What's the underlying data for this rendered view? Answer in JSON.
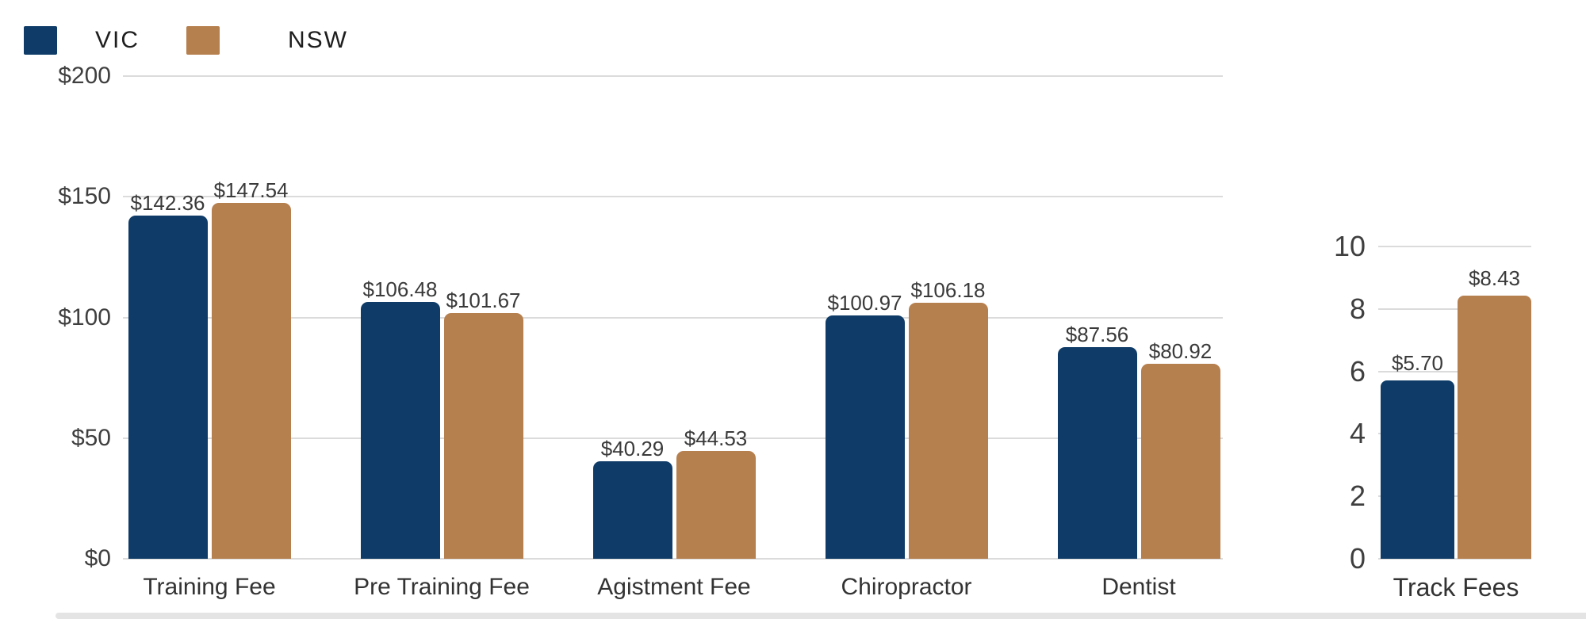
{
  "colors": {
    "vic": "#0E3B67",
    "nsw": "#B67F4E",
    "grid": "#DBDBDB",
    "tick_text": "#3F3F3F",
    "value_text": "#3A3A3A",
    "category_text": "#333333",
    "legend_text": "#1E1E1E",
    "page_edge": "#E4E4E4"
  },
  "legend": {
    "items": [
      {
        "label": "VIC",
        "color": "#0E3B67"
      },
      {
        "label": "NSW",
        "color": "#B67F4E"
      }
    ]
  },
  "chart_data": [
    {
      "type": "bar",
      "title": "",
      "xlabel": "",
      "ylabel": "",
      "grid": true,
      "legend_position": "top-left",
      "categories": [
        "Training Fee",
        "Pre Training Fee",
        "Agistment Fee",
        "Chiropractor",
        "Dentist"
      ],
      "series": [
        {
          "name": "VIC",
          "color": "#0E3B67",
          "values": [
            142.36,
            106.48,
            40.29,
            100.97,
            87.56
          ],
          "value_labels": [
            "$142.36",
            "$106.48",
            "$40.29",
            "$100.97",
            "$87.56"
          ]
        },
        {
          "name": "NSW",
          "color": "#B67F4E",
          "values": [
            147.54,
            101.67,
            44.53,
            106.18,
            80.92
          ],
          "value_labels": [
            "$147.54",
            "$101.67",
            "$44.53",
            "$106.18",
            "$80.92"
          ]
        }
      ],
      "ylim": [
        0,
        200
      ],
      "yticks": [
        {
          "value": 0,
          "label": "$0"
        },
        {
          "value": 50,
          "label": "$50"
        },
        {
          "value": 100,
          "label": "$100"
        },
        {
          "value": 150,
          "label": "$150"
        },
        {
          "value": 200,
          "label": "$200"
        }
      ]
    },
    {
      "type": "bar",
      "title": "",
      "xlabel": "",
      "ylabel": "",
      "grid": true,
      "categories": [
        "Track Fees"
      ],
      "series": [
        {
          "name": "VIC",
          "color": "#0E3B67",
          "values": [
            5.7
          ],
          "value_labels": [
            "$5.70"
          ]
        },
        {
          "name": "NSW",
          "color": "#B67F4E",
          "values": [
            8.43
          ],
          "value_labels": [
            "$8.43"
          ]
        }
      ],
      "ylim": [
        0,
        10
      ],
      "yticks": [
        {
          "value": 0,
          "label": "0"
        },
        {
          "value": 2,
          "label": "2"
        },
        {
          "value": 4,
          "label": "4"
        },
        {
          "value": 6,
          "label": "6"
        },
        {
          "value": 8,
          "label": "8"
        },
        {
          "value": 10,
          "label": "10"
        }
      ]
    }
  ]
}
